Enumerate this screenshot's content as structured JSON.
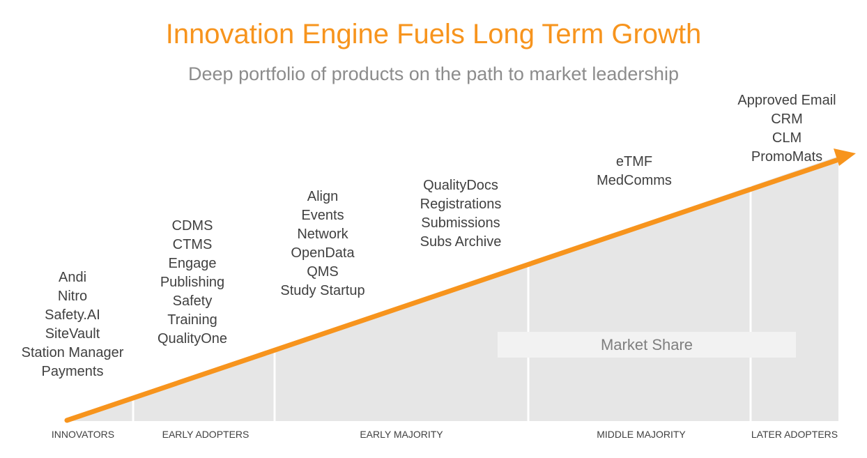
{
  "title": "Innovation Engine Fuels Long Term Growth",
  "subtitle": "Deep portfolio of products on the path to market leadership",
  "colors": {
    "accent": "#F7941D",
    "area": "#E6E6E6",
    "text": "#404040",
    "muted": "#8C8C8C"
  },
  "groups": [
    {
      "items": [
        "Andi",
        "Nitro",
        "Safety.AI",
        "SiteVault",
        "Station Manager",
        "Payments"
      ]
    },
    {
      "items": [
        "CDMS",
        "CTMS",
        "Engage",
        "Publishing",
        "Safety",
        "Training",
        "QualityOne"
      ]
    },
    {
      "items": [
        "Align",
        "Events",
        "Network",
        "OpenData",
        "QMS",
        "Study Startup"
      ]
    },
    {
      "items": [
        "QualityDocs",
        "Registrations",
        "Submissions",
        "Subs Archive"
      ]
    },
    {
      "items": [
        "eTMF",
        "MedComms"
      ]
    },
    {
      "items": [
        "Approved Email",
        "CRM",
        "CLM",
        "PromoMats"
      ]
    }
  ],
  "market_share_label": "Market Share",
  "stages": [
    "INNOVATORS",
    "EARLY ADOPTERS",
    "EARLY MAJORITY",
    "MIDDLE MAJORITY",
    "LATER ADOPTERS"
  ]
}
